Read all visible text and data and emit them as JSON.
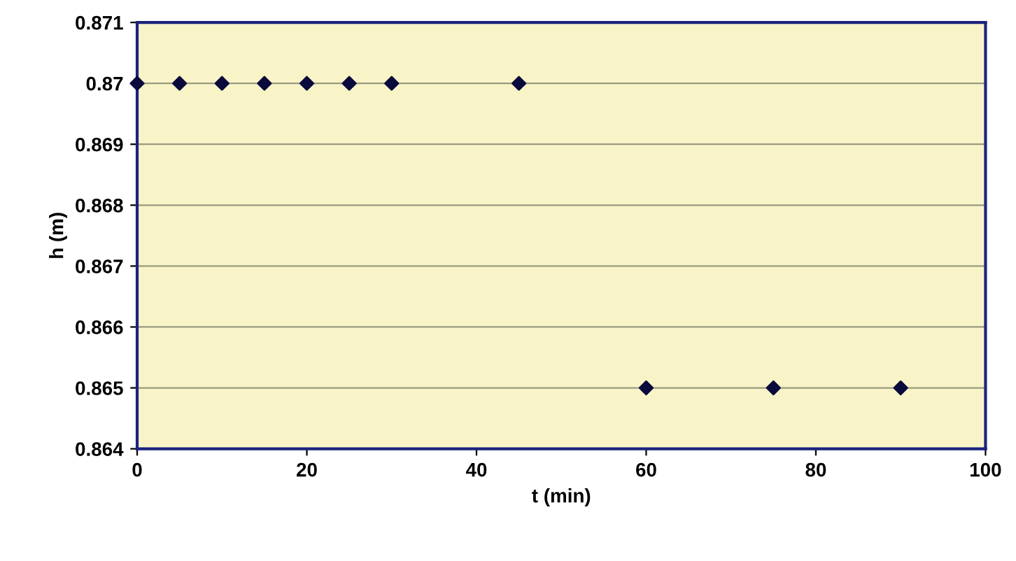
{
  "chart_data": {
    "type": "scatter",
    "xlabel": "t (min)",
    "ylabel": "h (m)",
    "x": [
      0,
      5,
      10,
      15,
      20,
      25,
      30,
      45,
      60,
      75,
      90
    ],
    "series": [
      {
        "color": "#0a0a3c",
        "values": [
          0.87,
          0.87,
          0.87,
          0.87,
          0.87,
          0.87,
          0.87,
          0.87,
          0.865,
          0.865,
          0.865
        ]
      }
    ],
    "xlim": [
      0,
      100
    ],
    "xticks": [
      0,
      20,
      40,
      60,
      80,
      100
    ],
    "ylim": [
      0.864,
      0.871
    ],
    "yticks": [
      0.864,
      0.865,
      0.866,
      0.867,
      0.868,
      0.869,
      0.87,
      0.871
    ],
    "grid": "y",
    "marker": "diamond"
  }
}
